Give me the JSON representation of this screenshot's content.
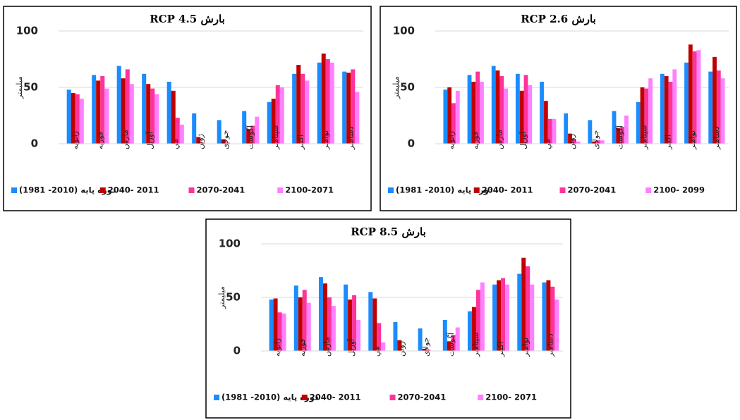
{
  "chart_data": [
    {
      "type": "bar",
      "title": "بارش RCP 4.5",
      "y_label": "میلیمتر",
      "categories": [
        "ژانویه",
        "فوریه",
        "مارس",
        "آوریل",
        "مي",
        "ژوئن",
        "جولای",
        "آگوست",
        "سپتامبر",
        "اکتبر",
        "نوامبر",
        "دسامبر"
      ],
      "series": [
        {
          "name": "(1981 -2010) دوره پایه",
          "color": "#1a8cff",
          "values": [
            48,
            61,
            69,
            62,
            55,
            27,
            21,
            29,
            37,
            62,
            72,
            64
          ]
        },
        {
          "name": "2040- 2011",
          "color": "#c00000",
          "values": [
            45,
            56,
            58,
            53,
            47,
            6,
            4,
            13,
            40,
            70,
            80,
            63
          ]
        },
        {
          "name": "2070-2041",
          "color": "#ff3399",
          "values": [
            44,
            60,
            66,
            49,
            23,
            1,
            1,
            16,
            52,
            62,
            75,
            66
          ]
        },
        {
          "name": "2100-2071",
          "color": "#ff80ff",
          "values": [
            40,
            49,
            53,
            44,
            17,
            0,
            0,
            24,
            50,
            56,
            72,
            46
          ]
        }
      ],
      "ylim": [
        0,
        100
      ],
      "yticks": [
        0,
        50,
        100
      ],
      "grid": true
    },
    {
      "type": "bar",
      "title": "بارش RCP 2.6",
      "y_label": "میلیمتر",
      "categories": [
        "ژانویه",
        "فوریه",
        "مارس",
        "آوریل",
        "مي",
        "ژوئن",
        "جولای",
        "آگوست",
        "سپتامبر",
        "اکتبر",
        "نوامبر",
        "دسامبر"
      ],
      "series": [
        {
          "name": "(1981 -2010) دوره پایه",
          "color": "#1a8cff",
          "values": [
            48,
            61,
            69,
            62,
            55,
            27,
            21,
            29,
            37,
            62,
            72,
            64
          ]
        },
        {
          "name": "2040- 2011",
          "color": "#c00000",
          "values": [
            50,
            55,
            65,
            47,
            38,
            9,
            2,
            14,
            50,
            60,
            88,
            77
          ]
        },
        {
          "name": "2070-2041",
          "color": "#ff3399",
          "values": [
            36,
            64,
            60,
            61,
            22,
            4,
            3,
            15,
            49,
            55,
            82,
            65
          ]
        },
        {
          "name": "2100- 2099",
          "color": "#ff80ff",
          "values": [
            47,
            55,
            49,
            52,
            22,
            2,
            3,
            25,
            58,
            66,
            83,
            58
          ]
        }
      ],
      "ylim": [
        0,
        100
      ],
      "yticks": [
        0,
        50,
        100
      ],
      "grid": true
    },
    {
      "type": "bar",
      "title": "بارش RCP 8.5",
      "y_label": "میلیمتر",
      "categories": [
        "ژانویه",
        "فوریه",
        "مارس",
        "آوریل",
        "مي",
        "ژوئن",
        "جولای",
        "آگوست",
        "سپتامبر",
        "اکتبر",
        "نوامبر",
        "دسامبر"
      ],
      "series": [
        {
          "name": "(1981 -2010) دوره پایه",
          "color": "#1a8cff",
          "values": [
            48,
            61,
            69,
            62,
            55,
            27,
            21,
            29,
            37,
            62,
            72,
            64
          ]
        },
        {
          "name": "2040- 2011",
          "color": "#c00000",
          "values": [
            49,
            50,
            63,
            48,
            49,
            10,
            2,
            9,
            41,
            66,
            87,
            66
          ]
        },
        {
          "name": "2070-2041",
          "color": "#ff3399",
          "values": [
            36,
            57,
            50,
            52,
            26,
            0,
            1,
            15,
            57,
            68,
            79,
            60
          ]
        },
        {
          "name": "2100- 2071",
          "color": "#ff80ff",
          "values": [
            35,
            45,
            42,
            29,
            8,
            0,
            0,
            22,
            64,
            62,
            62,
            48
          ]
        }
      ],
      "ylim": [
        0,
        100
      ],
      "yticks": [
        0,
        50,
        100
      ],
      "grid": true
    }
  ]
}
